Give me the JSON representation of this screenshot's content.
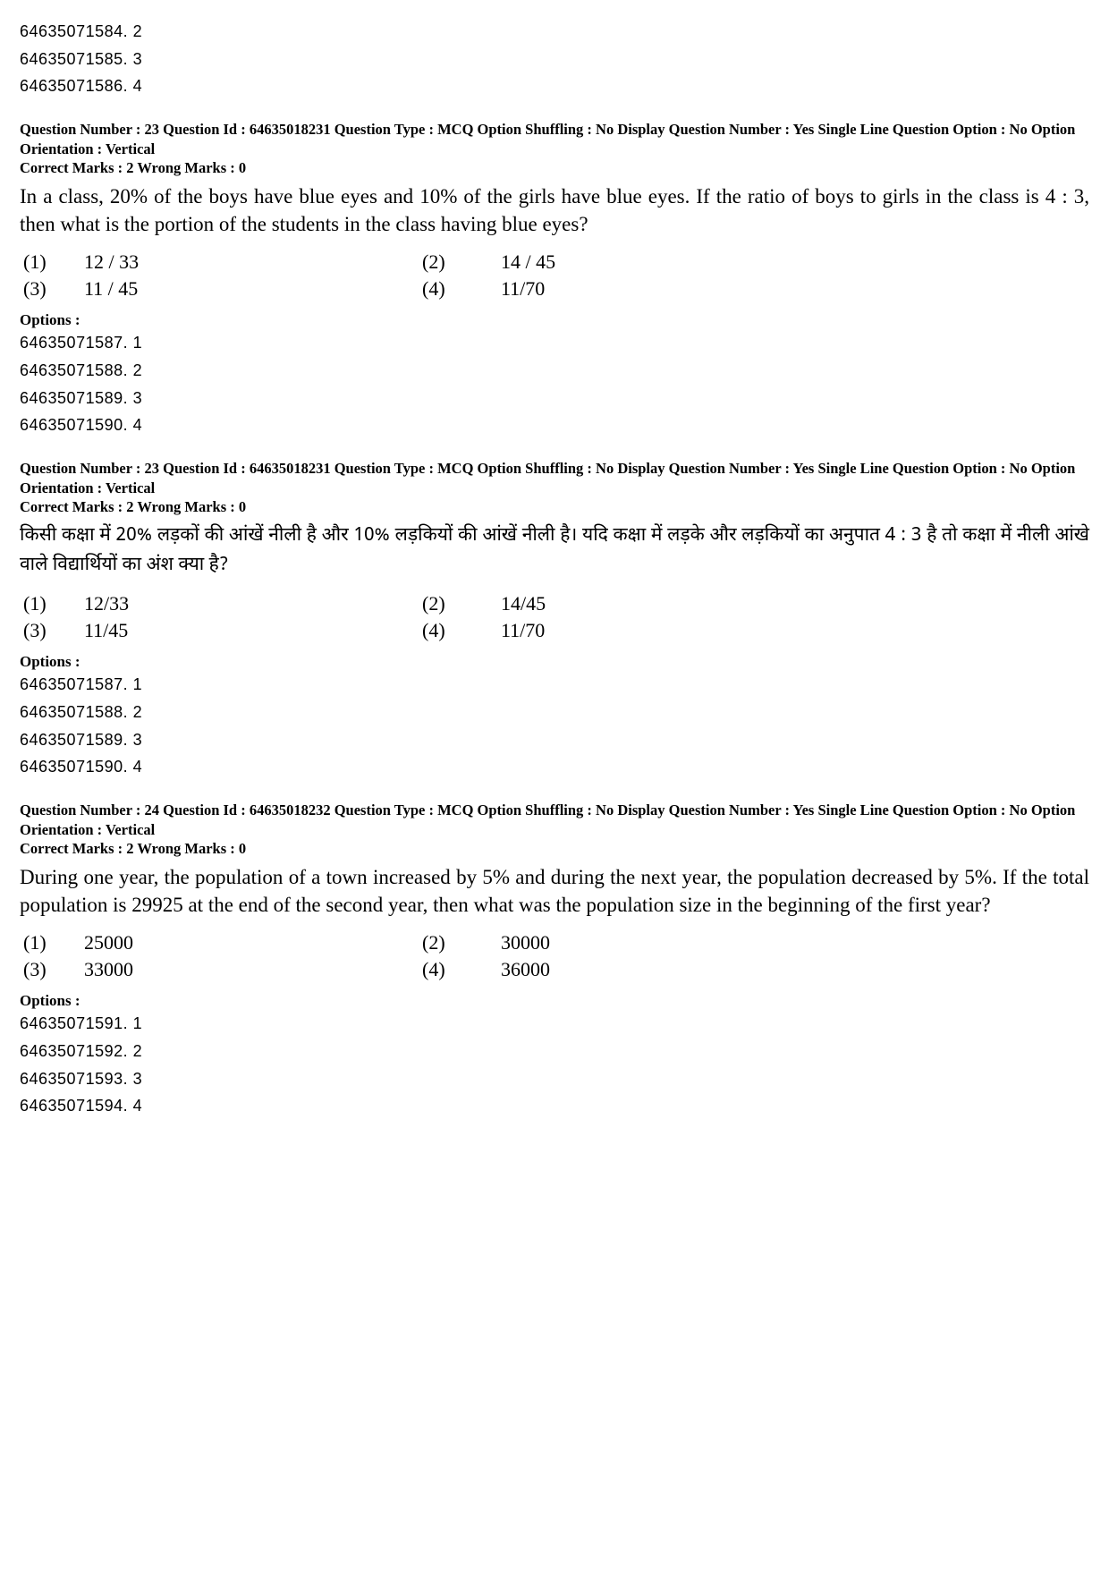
{
  "top_options": [
    "64635071584. 2",
    "64635071585. 3",
    "64635071586. 4"
  ],
  "q23_en": {
    "meta": "Question Number : 23  Question Id : 64635018231  Question Type : MCQ  Option Shuffling : No  Display Question Number : Yes  Single Line Question Option : No  Option Orientation : Vertical",
    "marks": "Correct Marks : 2  Wrong Marks : 0",
    "text": "In a class, 20% of the boys have blue eyes and 10% of the girls have blue eyes. If the ratio of boys to girls in the class is 4 : 3, then what is the portion of the students in the class having blue eyes?",
    "a1n": "(1)",
    "a1v": "12 / 33",
    "a2n": "(2)",
    "a2v": "14 / 45",
    "a3n": "(3)",
    "a3v": "11 / 45",
    "a4n": "(4)",
    "a4v": "11/70",
    "options_label": "Options :",
    "options": [
      "64635071587. 1",
      "64635071588. 2",
      "64635071589. 3",
      "64635071590. 4"
    ]
  },
  "q23_hi": {
    "meta": "Question Number : 23  Question Id : 64635018231  Question Type : MCQ  Option Shuffling : No  Display Question Number : Yes  Single Line Question Option : No  Option Orientation : Vertical",
    "marks": "Correct Marks : 2  Wrong Marks : 0",
    "text": "किसी कक्षा में 20% लड़कों की आंखें नीली है और 10% लड़कियों की आंखें नीली है। यदि कक्षा में लड़के और लड़कियों का अनुपात 4 : 3 है तो कक्षा में नीली आंखे वाले विद्यार्थियों का अंश क्या है?",
    "a1n": "(1)",
    "a1v": "12/33",
    "a2n": "(2)",
    "a2v": "14/45",
    "a3n": "(3)",
    "a3v": "11/45",
    "a4n": "(4)",
    "a4v": "11/70",
    "options_label": "Options :",
    "options": [
      "64635071587. 1",
      "64635071588. 2",
      "64635071589. 3",
      "64635071590. 4"
    ]
  },
  "q24": {
    "meta": "Question Number : 24  Question Id : 64635018232  Question Type : MCQ  Option Shuffling : No  Display Question Number : Yes  Single Line Question Option : No  Option Orientation : Vertical",
    "marks": "Correct Marks : 2  Wrong Marks : 0",
    "text": "During one year, the population of a town increased by 5% and during the next year, the population decreased by 5%. If the total population is 29925 at the end of the second year, then what was the population size in the beginning of the first year?",
    "a1n": "(1)",
    "a1v": "25000",
    "a2n": "(2)",
    "a2v": "30000",
    "a3n": "(3)",
    "a3v": "33000",
    "a4n": "(4)",
    "a4v": "36000",
    "options_label": "Options :",
    "options": [
      "64635071591. 1",
      "64635071592. 2",
      "64635071593. 3",
      "64635071594. 4"
    ]
  }
}
